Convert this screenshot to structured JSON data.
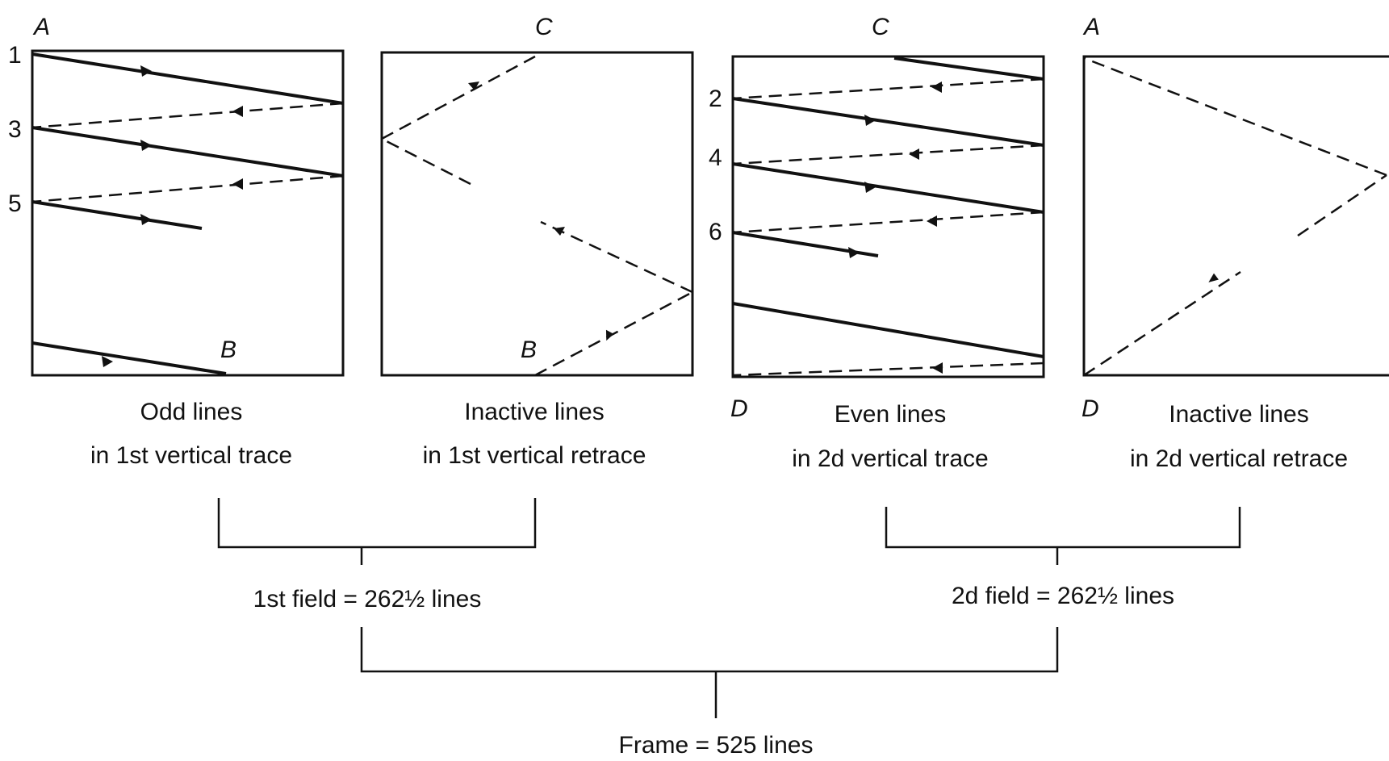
{
  "panels": [
    {
      "corner_top_left": "A",
      "corner_bottom": "B",
      "line_numbers": [
        "1",
        "3",
        "5"
      ],
      "caption_line1": "Odd lines",
      "caption_line2": "in 1st vertical trace"
    },
    {
      "corner_top": "C",
      "corner_bottom": "B",
      "caption_line1": "Inactive lines",
      "caption_line2": "in 1st vertical retrace"
    },
    {
      "corner_top": "C",
      "corner_bottom_left": "D",
      "line_numbers": [
        "2",
        "4",
        "6"
      ],
      "caption_line1": "Even lines",
      "caption_line2": "in 2d vertical trace"
    },
    {
      "corner_top_left": "A",
      "corner_bottom_left": "D",
      "caption_line1": "Inactive lines",
      "caption_line2": "in 2d vertical retrace"
    }
  ],
  "field1_label": "1st field = 262½ lines",
  "field2_label": "2d field = 262½ lines",
  "frame_label": "Frame = 525 lines"
}
